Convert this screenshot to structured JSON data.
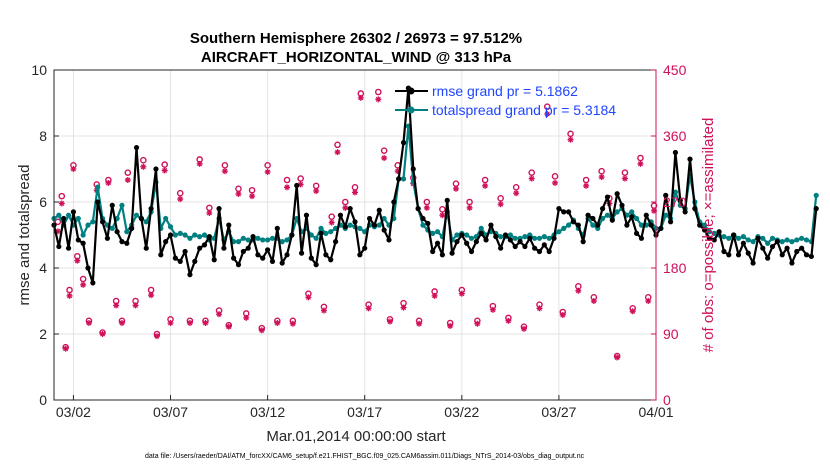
{
  "chart_data": {
    "type": "line",
    "title_line1": "Southern Hemisphere 26302 / 26973 = 97.512%",
    "title_line2": "AIRCRAFT_HORIZONTAL_WIND @ 313 hPa",
    "xlabel": "Mar.01,2014 00:00:00 start",
    "ylabel_left": "rmse and totalspread",
    "ylabel_right": "# of obs: o=possible; ×=assimilated",
    "footnote": "data file: /Users/raeder/DAI/ATM_forcXX/CAM6_setup/f.e21.FHIST_BGC.f09_025.CAM6assim.011/Diags_NTrS_2014-03/obs_diag_output.nc",
    "xlim": [
      0,
      31
    ],
    "ylim_left": [
      0,
      10
    ],
    "ylim_right": [
      0,
      450
    ],
    "xtick_positions": [
      1,
      6,
      11,
      16,
      21,
      26,
      31
    ],
    "xtick_labels": [
      "03/02",
      "03/07",
      "03/12",
      "03/17",
      "03/22",
      "03/27",
      "04/01"
    ],
    "ytick_left": [
      "0",
      "2",
      "4",
      "6",
      "8",
      "10"
    ],
    "ytick_right": [
      "0",
      "90",
      "180",
      "270",
      "360",
      "450"
    ],
    "colors": {
      "rmse": "#000000",
      "spread": "#008080",
      "obs": "#d0105a",
      "legend_text": "#1f45ff"
    },
    "step_days": 0.25,
    "series": [
      {
        "name": "rmse grand pr = 5.1862",
        "values": [
          5.3,
          4.65,
          5.5,
          4.6,
          5.7,
          4.85,
          4.75,
          4.0,
          3.55,
          6.0,
          5.4,
          4.9,
          5.9,
          5.1,
          4.8,
          4.75,
          5.2,
          7.65,
          5.5,
          4.6,
          5.8,
          7.0,
          4.4,
          4.8,
          5.0,
          4.3,
          4.2,
          4.5,
          3.8,
          4.2,
          4.6,
          4.7,
          4.95,
          4.25,
          5.8,
          4.6,
          5.3,
          4.3,
          4.1,
          4.5,
          4.6,
          4.95,
          4.4,
          4.3,
          4.55,
          4.2,
          5.2,
          4.15,
          4.4,
          5.0,
          6.5,
          4.45,
          5.6,
          4.3,
          4.1,
          5.05,
          4.4,
          4.25,
          4.8,
          5.6,
          5.25,
          5.8,
          5.4,
          4.4,
          4.6,
          5.5,
          5.3,
          5.75,
          5.15,
          4.85,
          6.0,
          6.7,
          7.8,
          9.45,
          7.0,
          5.8,
          5.5,
          5.35,
          4.5,
          4.75,
          4.4,
          6.05,
          4.45,
          4.8,
          5.0,
          4.75,
          4.5,
          4.8,
          5.05,
          4.85,
          5.3,
          4.95,
          4.6,
          5.0,
          4.85,
          4.65,
          4.8,
          4.65,
          4.9,
          4.6,
          4.5,
          4.7,
          4.5,
          4.9,
          5.8,
          5.7,
          5.7,
          5.4,
          5.3,
          4.8,
          5.6,
          5.5,
          5.3,
          5.8,
          6.15,
          5.45,
          6.25,
          5.9,
          5.3,
          5.55,
          5.05,
          4.9,
          5.6,
          5.3,
          5.0,
          5.2,
          6.2,
          5.4,
          7.5,
          6.05,
          5.7,
          7.3,
          5.8,
          5.3,
          5.15,
          4.9,
          4.85,
          5.1,
          4.5,
          4.4,
          5.0,
          4.4,
          4.75,
          4.45,
          4.15,
          4.9,
          4.6,
          4.3,
          4.65,
          4.8,
          4.4,
          4.6,
          4.15,
          4.5,
          4.6,
          4.4,
          4.35,
          5.8
        ]
      },
      {
        "name": "totalspread grand pr = 5.3184",
        "values": [
          5.5,
          5.6,
          5.3,
          5.6,
          5.3,
          5.5,
          5.0,
          5.3,
          5.4,
          6.45,
          5.5,
          5.3,
          5.2,
          5.5,
          5.9,
          5.1,
          5.3,
          5.6,
          5.5,
          5.4,
          5.7,
          6.6,
          5.2,
          5.5,
          5.25,
          5.0,
          5.05,
          5.0,
          4.9,
          5.0,
          4.95,
          5.0,
          4.85,
          4.9,
          5.5,
          4.85,
          5.1,
          4.8,
          4.8,
          4.9,
          4.85,
          4.85,
          4.9,
          4.85,
          4.85,
          4.9,
          4.9,
          4.8,
          4.85,
          5.0,
          5.5,
          5.1,
          5.2,
          5.0,
          4.9,
          5.2,
          5.05,
          5.1,
          5.2,
          5.3,
          5.2,
          5.3,
          5.25,
          5.2,
          5.1,
          5.3,
          5.25,
          5.3,
          5.5,
          5.3,
          5.5,
          6.7,
          6.7,
          8.3,
          6.6,
          5.8,
          5.3,
          5.15,
          5.05,
          5.1,
          4.95,
          5.7,
          4.85,
          5.0,
          5.05,
          5.0,
          4.9,
          4.95,
          5.2,
          5.0,
          5.1,
          5.05,
          4.95,
          4.95,
          5.0,
          4.9,
          4.9,
          4.95,
          5.0,
          4.9,
          4.9,
          4.95,
          4.9,
          5.0,
          5.1,
          5.2,
          5.3,
          5.45,
          5.2,
          5.0,
          5.5,
          5.3,
          5.2,
          5.5,
          5.6,
          5.5,
          5.7,
          5.8,
          5.6,
          5.7,
          5.5,
          5.3,
          5.3,
          5.4,
          5.2,
          5.2,
          5.6,
          5.5,
          6.3,
          5.9,
          5.8,
          6.8,
          6.0,
          5.4,
          5.3,
          5.1,
          5.05,
          5.0,
          4.95,
          4.9,
          5.0,
          4.9,
          4.95,
          4.85,
          4.8,
          4.95,
          4.9,
          4.75,
          4.9,
          4.85,
          4.8,
          4.85,
          4.8,
          4.85,
          4.9,
          4.85,
          4.8,
          6.2
        ]
      }
    ],
    "obs_possible": [
      {
        "x": 0.2,
        "n": 243
      },
      {
        "x": 0.4,
        "n": 278
      },
      {
        "x": 0.6,
        "n": 72
      },
      {
        "x": 0.8,
        "n": 150
      },
      {
        "x": 1.0,
        "n": 320
      },
      {
        "x": 1.2,
        "n": 196
      },
      {
        "x": 1.5,
        "n": 165
      },
      {
        "x": 1.8,
        "n": 108
      },
      {
        "x": 2.2,
        "n": 294
      },
      {
        "x": 2.5,
        "n": 92
      },
      {
        "x": 2.8,
        "n": 300
      },
      {
        "x": 3.2,
        "n": 135
      },
      {
        "x": 3.5,
        "n": 108
      },
      {
        "x": 3.8,
        "n": 310
      },
      {
        "x": 4.2,
        "n": 135
      },
      {
        "x": 4.6,
        "n": 327
      },
      {
        "x": 5.0,
        "n": 150
      },
      {
        "x": 5.3,
        "n": 90
      },
      {
        "x": 5.7,
        "n": 321
      },
      {
        "x": 6.0,
        "n": 110
      },
      {
        "x": 6.5,
        "n": 282
      },
      {
        "x": 7.0,
        "n": 108
      },
      {
        "x": 7.5,
        "n": 328
      },
      {
        "x": 7.8,
        "n": 108
      },
      {
        "x": 8.0,
        "n": 262
      },
      {
        "x": 8.5,
        "n": 122
      },
      {
        "x": 8.8,
        "n": 320
      },
      {
        "x": 9.0,
        "n": 102
      },
      {
        "x": 9.5,
        "n": 288
      },
      {
        "x": 9.9,
        "n": 118
      },
      {
        "x": 10.2,
        "n": 286
      },
      {
        "x": 10.7,
        "n": 98
      },
      {
        "x": 11.0,
        "n": 320
      },
      {
        "x": 11.5,
        "n": 108
      },
      {
        "x": 12.0,
        "n": 300
      },
      {
        "x": 12.3,
        "n": 108
      },
      {
        "x": 12.7,
        "n": 302
      },
      {
        "x": 13.1,
        "n": 145
      },
      {
        "x": 13.5,
        "n": 292
      },
      {
        "x": 13.9,
        "n": 127
      },
      {
        "x": 14.3,
        "n": 250
      },
      {
        "x": 14.6,
        "n": 348
      },
      {
        "x": 15.0,
        "n": 270
      },
      {
        "x": 15.5,
        "n": 290
      },
      {
        "x": 15.8,
        "n": 418
      },
      {
        "x": 16.2,
        "n": 130
      },
      {
        "x": 16.7,
        "n": 420
      },
      {
        "x": 17.0,
        "n": 340
      },
      {
        "x": 17.3,
        "n": 110
      },
      {
        "x": 17.7,
        "n": 320
      },
      {
        "x": 18.0,
        "n": 132
      },
      {
        "x": 18.5,
        "n": 303
      },
      {
        "x": 18.8,
        "n": 108
      },
      {
        "x": 19.2,
        "n": 270
      },
      {
        "x": 19.6,
        "n": 148
      },
      {
        "x": 20.0,
        "n": 260
      },
      {
        "x": 20.4,
        "n": 105
      },
      {
        "x": 20.7,
        "n": 295
      },
      {
        "x": 21.0,
        "n": 150
      },
      {
        "x": 21.4,
        "n": 270
      },
      {
        "x": 21.8,
        "n": 108
      },
      {
        "x": 22.2,
        "n": 300
      },
      {
        "x": 22.6,
        "n": 128
      },
      {
        "x": 23.0,
        "n": 275
      },
      {
        "x": 23.4,
        "n": 112
      },
      {
        "x": 23.8,
        "n": 290
      },
      {
        "x": 24.2,
        "n": 100
      },
      {
        "x": 24.6,
        "n": 310
      },
      {
        "x": 25.0,
        "n": 130
      },
      {
        "x": 25.4,
        "n": 400
      },
      {
        "x": 25.8,
        "n": 305
      },
      {
        "x": 26.2,
        "n": 120
      },
      {
        "x": 26.6,
        "n": 363
      },
      {
        "x": 27.0,
        "n": 155
      },
      {
        "x": 27.4,
        "n": 300
      },
      {
        "x": 27.8,
        "n": 140
      },
      {
        "x": 28.2,
        "n": 312
      },
      {
        "x": 28.6,
        "n": 275
      },
      {
        "x": 29.0,
        "n": 60
      },
      {
        "x": 29.4,
        "n": 310
      },
      {
        "x": 29.8,
        "n": 125
      },
      {
        "x": 30.2,
        "n": 330
      },
      {
        "x": 30.6,
        "n": 140
      },
      {
        "x": 30.9,
        "n": 265
      }
    ],
    "obs_assimilated": [
      {
        "x": 0.2,
        "n": 230
      },
      {
        "x": 0.4,
        "n": 268
      },
      {
        "x": 0.6,
        "n": 70
      },
      {
        "x": 0.8,
        "n": 142
      },
      {
        "x": 1.0,
        "n": 315
      },
      {
        "x": 1.2,
        "n": 190
      },
      {
        "x": 1.5,
        "n": 157
      },
      {
        "x": 1.8,
        "n": 105
      },
      {
        "x": 2.2,
        "n": 286
      },
      {
        "x": 2.5,
        "n": 90
      },
      {
        "x": 2.8,
        "n": 296
      },
      {
        "x": 3.2,
        "n": 129
      },
      {
        "x": 3.5,
        "n": 105
      },
      {
        "x": 3.8,
        "n": 300
      },
      {
        "x": 4.2,
        "n": 129
      },
      {
        "x": 4.6,
        "n": 318
      },
      {
        "x": 5.0,
        "n": 143
      },
      {
        "x": 5.3,
        "n": 87
      },
      {
        "x": 5.7,
        "n": 313
      },
      {
        "x": 6.0,
        "n": 105
      },
      {
        "x": 6.5,
        "n": 274
      },
      {
        "x": 7.0,
        "n": 105
      },
      {
        "x": 7.5,
        "n": 322
      },
      {
        "x": 7.8,
        "n": 105
      },
      {
        "x": 8.0,
        "n": 255
      },
      {
        "x": 8.5,
        "n": 117
      },
      {
        "x": 8.8,
        "n": 312
      },
      {
        "x": 9.0,
        "n": 100
      },
      {
        "x": 9.5,
        "n": 281
      },
      {
        "x": 9.9,
        "n": 112
      },
      {
        "x": 10.2,
        "n": 278
      },
      {
        "x": 10.7,
        "n": 95
      },
      {
        "x": 11.0,
        "n": 311
      },
      {
        "x": 11.5,
        "n": 105
      },
      {
        "x": 12.0,
        "n": 290
      },
      {
        "x": 12.3,
        "n": 104
      },
      {
        "x": 12.7,
        "n": 294
      },
      {
        "x": 13.1,
        "n": 140
      },
      {
        "x": 13.5,
        "n": 285
      },
      {
        "x": 13.9,
        "n": 122
      },
      {
        "x": 14.3,
        "n": 242
      },
      {
        "x": 14.6,
        "n": 338
      },
      {
        "x": 15.0,
        "n": 262
      },
      {
        "x": 15.5,
        "n": 283
      },
      {
        "x": 15.8,
        "n": 412
      },
      {
        "x": 16.2,
        "n": 125
      },
      {
        "x": 16.7,
        "n": 410
      },
      {
        "x": 17.0,
        "n": 330
      },
      {
        "x": 17.3,
        "n": 107
      },
      {
        "x": 17.7,
        "n": 312
      },
      {
        "x": 18.0,
        "n": 126
      },
      {
        "x": 18.5,
        "n": 295
      },
      {
        "x": 18.8,
        "n": 104
      },
      {
        "x": 19.2,
        "n": 262
      },
      {
        "x": 19.6,
        "n": 142
      },
      {
        "x": 20.0,
        "n": 252
      },
      {
        "x": 20.4,
        "n": 101
      },
      {
        "x": 20.7,
        "n": 288
      },
      {
        "x": 21.0,
        "n": 145
      },
      {
        "x": 21.4,
        "n": 262
      },
      {
        "x": 21.8,
        "n": 104
      },
      {
        "x": 22.2,
        "n": 292
      },
      {
        "x": 22.6,
        "n": 123
      },
      {
        "x": 23.0,
        "n": 267
      },
      {
        "x": 23.4,
        "n": 108
      },
      {
        "x": 23.8,
        "n": 282
      },
      {
        "x": 24.2,
        "n": 97
      },
      {
        "x": 24.6,
        "n": 302
      },
      {
        "x": 25.0,
        "n": 125
      },
      {
        "x": 25.4,
        "n": 390
      },
      {
        "x": 25.8,
        "n": 296
      },
      {
        "x": 26.2,
        "n": 116
      },
      {
        "x": 26.6,
        "n": 355
      },
      {
        "x": 27.0,
        "n": 149
      },
      {
        "x": 27.4,
        "n": 292
      },
      {
        "x": 27.8,
        "n": 135
      },
      {
        "x": 28.2,
        "n": 304
      },
      {
        "x": 28.6,
        "n": 268
      },
      {
        "x": 29.0,
        "n": 58
      },
      {
        "x": 29.4,
        "n": 302
      },
      {
        "x": 29.8,
        "n": 121
      },
      {
        "x": 30.2,
        "n": 322
      },
      {
        "x": 30.6,
        "n": 135
      },
      {
        "x": 30.9,
        "n": 258
      }
    ]
  }
}
